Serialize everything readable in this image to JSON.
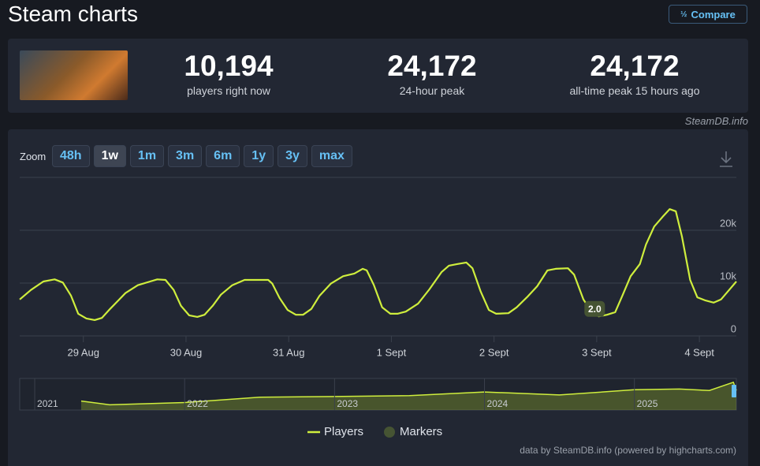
{
  "header": {
    "title": "Steam charts",
    "compare": "Compare"
  },
  "stats": [
    {
      "value": "10,194",
      "label": "players right now"
    },
    {
      "value": "24,172",
      "label": "24-hour peak"
    },
    {
      "value": "24,172",
      "label": "all-time peak 15 hours ago"
    }
  ],
  "source": "SteamDB.info",
  "zoom": {
    "label": "Zoom",
    "options": [
      "48h",
      "1w",
      "1m",
      "3m",
      "6m",
      "1y",
      "3y",
      "max"
    ],
    "selected": 1
  },
  "credits": "data by SteamDB.info (powered by highcharts.com)",
  "chart_data": {
    "type": "line",
    "x": [
      -0.62,
      -0.51,
      -0.39,
      -0.28,
      -0.2,
      -0.12,
      -0.05,
      0.03,
      0.11,
      0.18,
      0.26,
      0.34,
      0.41,
      0.53,
      0.65,
      0.72,
      0.8,
      0.88,
      0.95,
      1.03,
      1.11,
      1.18,
      1.26,
      1.34,
      1.45,
      1.57,
      1.68,
      1.8,
      1.84,
      1.91,
      1.99,
      2.07,
      2.14,
      2.22,
      2.3,
      2.41,
      2.53,
      2.64,
      2.72,
      2.76,
      2.83,
      2.91,
      2.99,
      3.06,
      3.14,
      3.26,
      3.37,
      3.49,
      3.56,
      3.64,
      3.73,
      3.79,
      3.87,
      3.95,
      4.02,
      4.14,
      4.22,
      4.33,
      4.42,
      4.52,
      4.6,
      4.72,
      4.78,
      4.87,
      4.95,
      5.02,
      5.1,
      5.18,
      5.25,
      5.33,
      5.42,
      5.48,
      5.56,
      5.64,
      5.71,
      5.77,
      5.83,
      5.91,
      5.98,
      6.06,
      6.14,
      6.21,
      6.29,
      6.36
    ],
    "series": [
      {
        "name": "Players",
        "color": "#cfee3d",
        "values": [
          6900,
          8700,
          10300,
          10700,
          10100,
          7600,
          4200,
          3300,
          3000,
          3400,
          5100,
          6700,
          8100,
          9600,
          10300,
          10700,
          10600,
          8700,
          5700,
          3900,
          3600,
          4000,
          5700,
          7800,
          9600,
          10600,
          10600,
          10600,
          9900,
          7200,
          4900,
          4000,
          4000,
          5100,
          7600,
          9900,
          11300,
          11800,
          12700,
          12400,
          9600,
          5400,
          4200,
          4200,
          4600,
          6100,
          8800,
          12100,
          13300,
          13600,
          13900,
          12800,
          8400,
          4900,
          4200,
          4300,
          5400,
          7500,
          9400,
          12400,
          12700,
          12800,
          11600,
          6900,
          4600,
          3700,
          4000,
          4500,
          7600,
          11300,
          13600,
          17300,
          20700,
          22500,
          24000,
          23600,
          18800,
          10600,
          7300,
          6700,
          6300,
          6900,
          8700,
          10300
        ]
      }
    ],
    "xlim": [
      -0.62,
      6.36
    ],
    "xticks": [
      {
        "value": 0,
        "label": "29 Aug"
      },
      {
        "value": 1,
        "label": "30 Aug"
      },
      {
        "value": 2,
        "label": "31 Aug"
      },
      {
        "value": 3,
        "label": "1 Sept"
      },
      {
        "value": 4,
        "label": "2 Sept"
      },
      {
        "value": 5,
        "label": "3 Sept"
      },
      {
        "value": 6,
        "label": "4 Sept"
      }
    ],
    "ylim": [
      0,
      30000
    ],
    "yticks": [
      0,
      {
        "value": 10000,
        "label": "10k"
      },
      {
        "value": 20000,
        "label": "20k"
      }
    ],
    "grid": true,
    "markers": {
      "name": "Markers",
      "color": "#465433",
      "items": [
        {
          "label": "2.0",
          "x": 4.98
        }
      ]
    },
    "navigator": {
      "x": [
        2021.31,
        2021.5,
        2022.0,
        2022.5,
        2023.0,
        2023.5,
        2024.0,
        2024.5,
        2025.0,
        2025.3,
        2025.5,
        2025.66,
        2025.68
      ],
      "values": [
        7400,
        4300,
        6200,
        10500,
        11100,
        11800,
        14900,
        12400,
        16700,
        17300,
        16100,
        22900,
        16100
      ],
      "xlim": [
        2020.9,
        2025.68
      ],
      "ylim": [
        0,
        26000
      ],
      "xticks": [
        2021,
        2022,
        2023,
        2024,
        2025
      ]
    }
  }
}
